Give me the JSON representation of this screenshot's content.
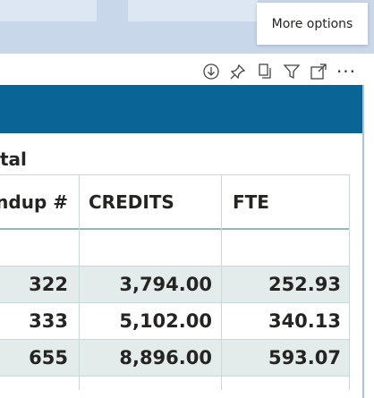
{
  "tooltip": {
    "text": "More options"
  },
  "visual_header": {
    "icons": [
      "drill-down-icon",
      "pin-icon",
      "copy-icon",
      "filter-icon",
      "focus-mode-icon",
      "more-options-icon"
    ],
    "more_label": "···"
  },
  "table": {
    "group_label": "tal",
    "columns": [
      "ndup #",
      "CREDITS",
      "FTE"
    ],
    "rows": [
      {
        "headcount": "322",
        "credits": "3,794.00",
        "fte": "252.93"
      },
      {
        "headcount": "333",
        "credits": "5,102.00",
        "fte": "340.13"
      },
      {
        "headcount": "655",
        "credits": "8,896.00",
        "fte": "593.07"
      }
    ]
  },
  "colors": {
    "title_band": "#0a6496",
    "row_shade": "#e3ecea",
    "canvas": "#c9d7ea"
  }
}
